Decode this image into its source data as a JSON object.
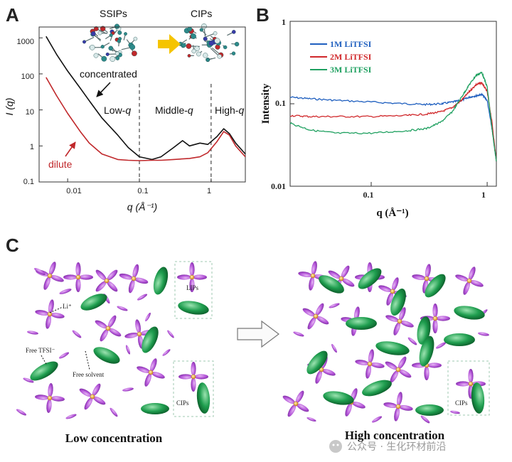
{
  "panels": {
    "a": {
      "letter": "A",
      "top_labels": [
        "SSIPs",
        "CIPs"
      ],
      "region_labels": {
        "low": "Low-",
        "middle": "Middle-",
        "high": "High-",
        "q": "q"
      },
      "curve_labels": {
        "concentrated": "concentrated",
        "dilute": "dilute"
      },
      "xlabel": "q (Å⁻¹)",
      "ylabel": "I (q)",
      "xticks": [
        "0.01",
        "0.1",
        "1"
      ],
      "yticks": [
        "1000",
        "100",
        "10",
        "1",
        "0.1"
      ],
      "colors": {
        "concentrated": "#111111",
        "dilute": "#c0282b",
        "arrow": "#f5c400"
      }
    },
    "b": {
      "letter": "B",
      "xlabel": "q (Å⁻¹)",
      "ylabel": "Intensity",
      "xticks": [
        "0.1",
        "1"
      ],
      "yticks": [
        "1",
        "0.1",
        "0.01"
      ],
      "legend": [
        {
          "name": "1M LiTFSI",
          "color": "#1f5fbf"
        },
        {
          "name": "2M LiTFSI",
          "color": "#d0282b"
        },
        {
          "name": "3M LiTFSI",
          "color": "#1fa060"
        }
      ]
    },
    "c": {
      "letter": "C",
      "labels": {
        "li": "Li⁺",
        "lips": "LIPs",
        "free_tfsi": "Free TFSI⁻",
        "free_solvent": "Free solvent",
        "cips_low": "CIPs",
        "cips_high": "CIPs"
      },
      "captions": {
        "low": "Low concentration",
        "high": "High concentration"
      },
      "colors": {
        "anion": "#b455d8",
        "solvent": "#1f9e4f",
        "li": "#e8a020"
      }
    }
  },
  "watermark": "公众号 · 生化环材前沿",
  "chart_data": [
    {
      "type": "line",
      "title": "",
      "xlabel": "q (Å⁻¹)",
      "ylabel": "I (q)",
      "x_scale": "log",
      "y_scale": "log",
      "xlim": [
        0.004,
        3
      ],
      "ylim": [
        0.1,
        2000
      ],
      "series": [
        {
          "name": "concentrated",
          "x": [
            0.005,
            0.007,
            0.01,
            0.015,
            0.02,
            0.03,
            0.05,
            0.07,
            0.1,
            0.15,
            0.2,
            0.3,
            0.4,
            0.5,
            0.7,
            0.9,
            1.2,
            1.5,
            1.8,
            2.2,
            3.0
          ],
          "y": [
            1100,
            350,
            120,
            40,
            18,
            6,
            2,
            0.9,
            0.5,
            0.42,
            0.5,
            0.9,
            1.4,
            1.0,
            1.2,
            1.1,
            1.8,
            3.0,
            2.2,
            1.2,
            0.6
          ]
        },
        {
          "name": "dilute",
          "x": [
            0.005,
            0.007,
            0.01,
            0.015,
            0.02,
            0.03,
            0.05,
            0.07,
            0.1,
            0.15,
            0.2,
            0.3,
            0.5,
            0.7,
            0.9,
            1.2,
            1.5,
            1.8,
            2.2,
            3.0
          ],
          "y": [
            80,
            25,
            8,
            2.5,
            1.2,
            0.6,
            0.42,
            0.4,
            0.39,
            0.4,
            0.4,
            0.42,
            0.45,
            0.5,
            0.65,
            1.3,
            2.5,
            2.0,
            1.0,
            0.5
          ]
        }
      ],
      "vlines": [
        0.1,
        1.0
      ],
      "annotations": [
        "SSIPs",
        "CIPs",
        "concentrated",
        "dilute",
        "Low-q",
        "Middle-q",
        "High-q"
      ]
    },
    {
      "type": "line",
      "title": "",
      "xlabel": "q (Å⁻¹)",
      "ylabel": "Intensity",
      "x_scale": "log",
      "y_scale": "log",
      "xlim": [
        0.02,
        1.2
      ],
      "ylim": [
        0.01,
        1
      ],
      "legend": "top-left",
      "series": [
        {
          "name": "1M LiTFSI",
          "x": [
            0.02,
            0.03,
            0.05,
            0.1,
            0.2,
            0.3,
            0.4,
            0.5,
            0.6,
            0.7,
            0.8,
            0.9,
            1.0,
            1.1,
            1.2
          ],
          "y": [
            0.12,
            0.115,
            0.11,
            0.105,
            0.1,
            0.098,
            0.1,
            0.105,
            0.11,
            0.12,
            0.125,
            0.13,
            0.11,
            0.05,
            0.02
          ]
        },
        {
          "name": "2M LiTFSI",
          "x": [
            0.02,
            0.03,
            0.05,
            0.1,
            0.2,
            0.3,
            0.4,
            0.5,
            0.6,
            0.7,
            0.8,
            0.9,
            1.0,
            1.1,
            1.2
          ],
          "y": [
            0.072,
            0.07,
            0.07,
            0.07,
            0.072,
            0.075,
            0.08,
            0.09,
            0.11,
            0.14,
            0.17,
            0.18,
            0.14,
            0.06,
            0.02
          ]
        },
        {
          "name": "3M LiTFSI",
          "x": [
            0.02,
            0.03,
            0.05,
            0.1,
            0.2,
            0.3,
            0.4,
            0.5,
            0.6,
            0.7,
            0.8,
            0.9,
            1.0,
            1.1,
            1.2
          ],
          "y": [
            0.058,
            0.048,
            0.044,
            0.044,
            0.047,
            0.05,
            0.06,
            0.08,
            0.12,
            0.17,
            0.22,
            0.24,
            0.16,
            0.05,
            0.02
          ]
        }
      ]
    }
  ]
}
